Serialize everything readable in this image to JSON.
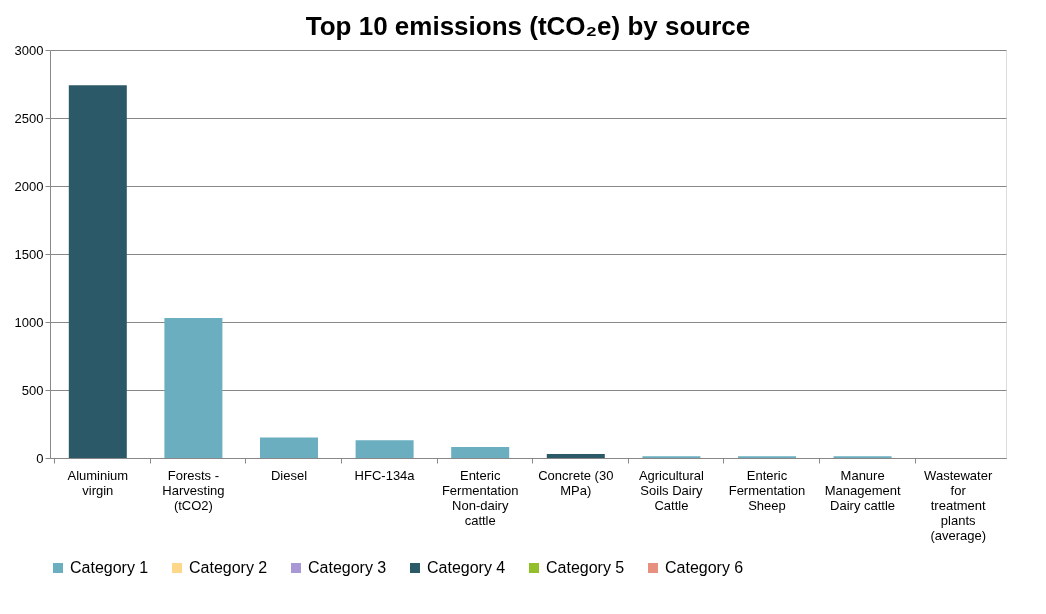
{
  "chart_data": {
    "type": "bar",
    "title": "Top 10 emissions (tCO₂e) by source",
    "stacked": true,
    "categories": [
      "Aluminium virgin",
      "Forests - Harvesting (tCO2)",
      "Diesel",
      "HFC-134a",
      "Enteric Fermentation Non-dairy cattle",
      "Concrete (30 MPa)",
      "Agricultural Soils Dairy Cattle",
      "Enteric Fermentation Sheep",
      "Manure Management Dairy cattle",
      "Wastewater for treatment plants (average)"
    ],
    "series": [
      {
        "name": "Category 1",
        "color": "#6aaebf",
        "values": [
          null,
          1030,
          150,
          130,
          80,
          null,
          12,
          12,
          12,
          null
        ]
      },
      {
        "name": "Category 2",
        "color": "#fdd88a",
        "values": [
          null,
          null,
          null,
          null,
          null,
          null,
          null,
          null,
          null,
          null
        ]
      },
      {
        "name": "Category 3",
        "color": "#a899d6",
        "values": [
          null,
          null,
          null,
          null,
          null,
          null,
          null,
          null,
          null,
          null
        ]
      },
      {
        "name": "Category 4",
        "color": "#2c5967",
        "values": [
          2740,
          null,
          null,
          null,
          null,
          30,
          null,
          null,
          null,
          null
        ]
      },
      {
        "name": "Category 5",
        "color": "#92bf2a",
        "values": [
          null,
          null,
          null,
          null,
          null,
          null,
          null,
          null,
          null,
          null
        ]
      },
      {
        "name": "Category 6",
        "color": "#e8907f",
        "values": [
          null,
          null,
          null,
          null,
          null,
          null,
          null,
          null,
          null,
          null
        ]
      }
    ],
    "ylim": [
      0,
      3000
    ],
    "yticks": [
      0,
      500,
      1000,
      1500,
      2000,
      2500,
      3000
    ],
    "grid": "y",
    "legend": "bottom"
  }
}
